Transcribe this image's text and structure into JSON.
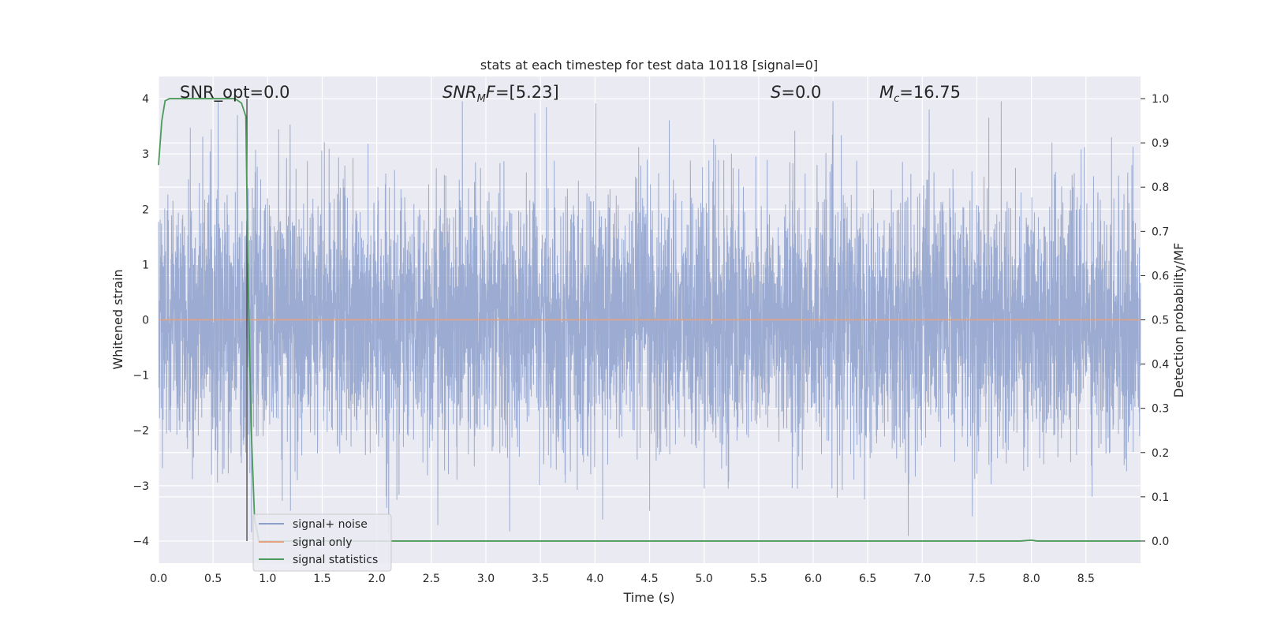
{
  "chart_data": {
    "type": "line",
    "title": "stats at each timestep for test data 10118 [signal=0]",
    "xlabel": "Time (s)",
    "ylabel": "Whitened strain",
    "ylabel_right": "Detection probability/MF",
    "xlim": [
      0,
      9.0
    ],
    "ylim": [
      -4.4,
      4.4
    ],
    "ylim_right": [
      -0.05,
      1.05
    ],
    "xticks": [
      "0.0",
      "0.5",
      "1.0",
      "1.5",
      "2.0",
      "2.5",
      "3.0",
      "3.5",
      "4.0",
      "4.5",
      "5.0",
      "5.5",
      "6.0",
      "6.5",
      "7.0",
      "7.5",
      "8.0",
      "8.5"
    ],
    "yticks": [
      "4",
      "3",
      "2",
      "1",
      "0",
      "−1",
      "−2",
      "−3",
      "−4"
    ],
    "yticks_right": [
      "1.0",
      "0.9",
      "0.8",
      "0.7",
      "0.6",
      "0.5",
      "0.4",
      "0.3",
      "0.2",
      "0.1",
      "0.0"
    ],
    "grid": true,
    "legend_position": "lower-left",
    "annotations": {
      "snr_opt": "SNR_opt=0.0",
      "snr_mf_main": "SNR",
      "snr_mf_sub": "M",
      "snr_mf_rest": "F=[5.23]",
      "s_main": "S",
      "s_rest": "=0.0",
      "mc_main": "M",
      "mc_sub": "c",
      "mc_rest": "=16.75"
    },
    "vline_x": 0.81,
    "series": [
      {
        "name": "signal+ noise",
        "color": "#8da0cb",
        "description_values": "dense whitened noise ~N(0,1), range approx -4 to 4"
      },
      {
        "name": "signal only",
        "color": "#e5a17e",
        "constant_value": 0.0
      },
      {
        "name": "signal statistics",
        "color": "#4c9a5a",
        "axis": "right",
        "x": [
          0.0,
          0.03,
          0.06,
          0.1,
          0.2,
          0.3,
          0.4,
          0.5,
          0.6,
          0.7,
          0.76,
          0.8,
          0.82,
          0.85,
          0.88,
          0.92,
          1.0,
          2.0,
          3.0,
          4.0,
          5.0,
          6.0,
          7.0,
          7.9,
          8.0,
          8.05,
          8.5,
          9.0
        ],
        "y": [
          0.85,
          0.95,
          0.995,
          1.0,
          1.0,
          1.0,
          1.0,
          1.0,
          1.0,
          1.0,
          0.99,
          0.96,
          0.6,
          0.25,
          0.05,
          0.0,
          0.0,
          0.0,
          0.0,
          0.0,
          0.0,
          0.0,
          0.0,
          0.0,
          0.002,
          0.0,
          0.0,
          0.0
        ]
      }
    ]
  }
}
